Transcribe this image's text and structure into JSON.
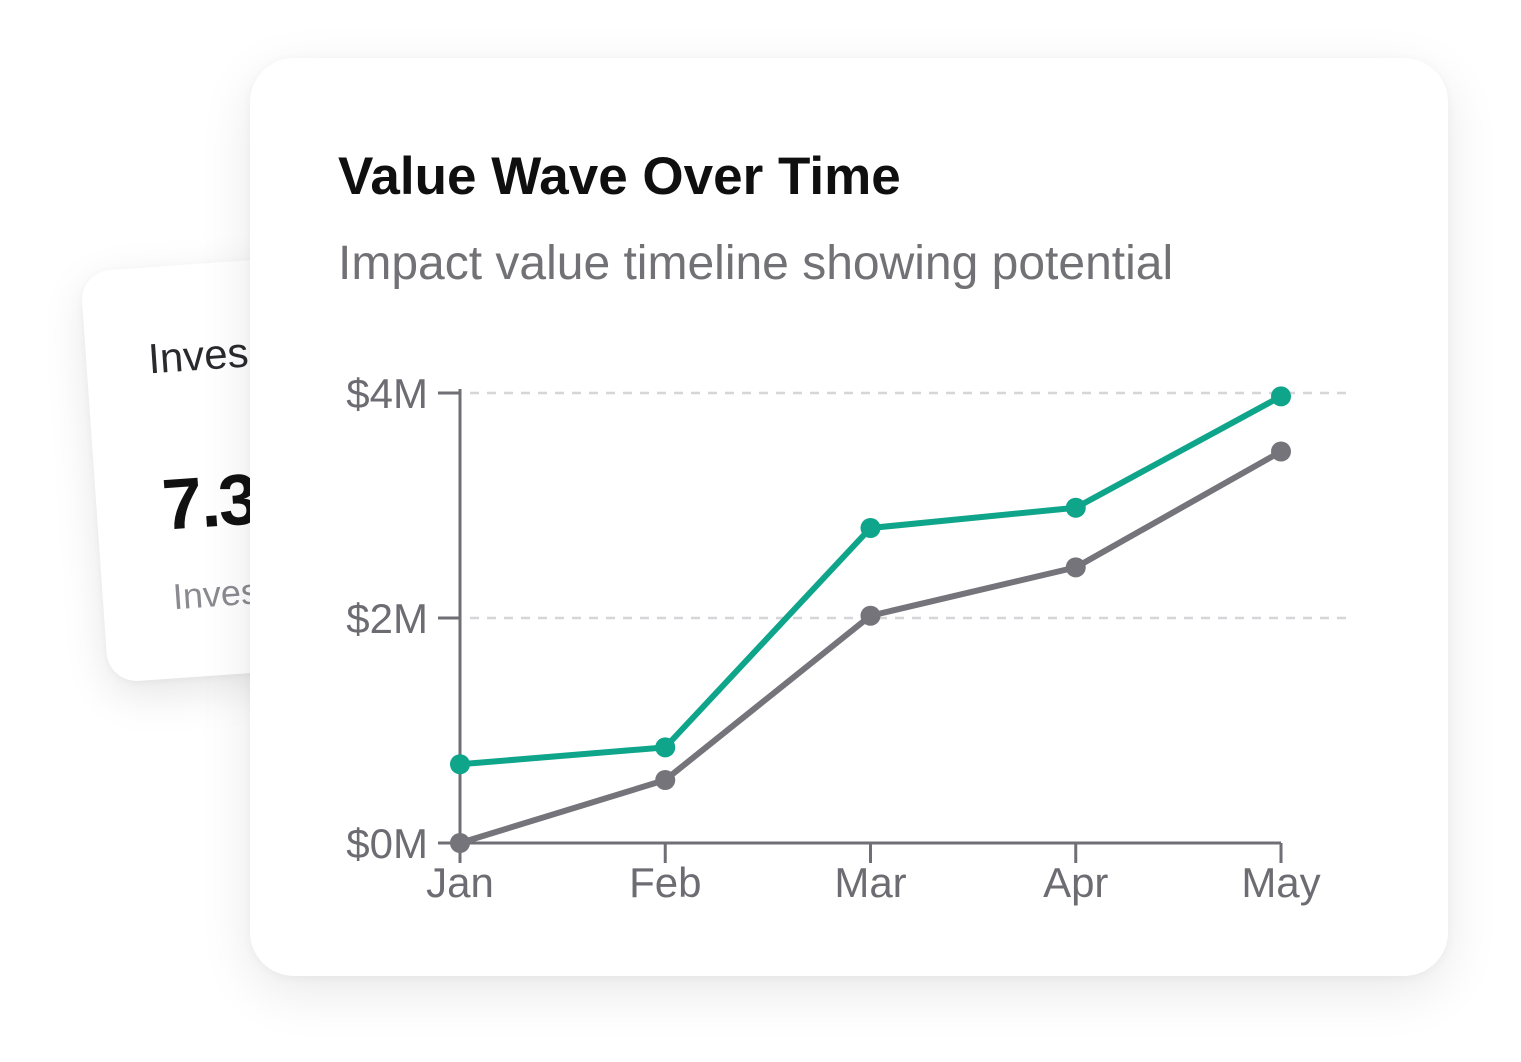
{
  "back_card": {
    "title": "Inves",
    "value": "7.3",
    "subtitle": "Inves"
  },
  "card": {
    "title": "Value Wave Over Time",
    "subtitle": "Impact value timeline showing potential"
  },
  "colors": {
    "series_teal": "#0ea58b",
    "series_gray": "#75747b",
    "axis": "#6f6f75",
    "grid": "#d6d6d9"
  },
  "chart_data": {
    "type": "line",
    "title": "Value Wave Over Time",
    "subtitle": "Impact value timeline showing potential",
    "categories": [
      "Jan",
      "Feb",
      "Mar",
      "Apr",
      "May"
    ],
    "y_ticks": [
      {
        "value": 0,
        "label": "$0M"
      },
      {
        "value": 2,
        "label": "$2M"
      },
      {
        "value": 4,
        "label": "$4M"
      }
    ],
    "ylim": [
      0,
      4
    ],
    "grid": "dashed horizontal",
    "legend": "none",
    "series": [
      {
        "color": "#0ea58b",
        "values": [
          0.7,
          0.85,
          2.8,
          2.98,
          3.97
        ]
      },
      {
        "color": "#75747b",
        "values": [
          0.0,
          0.56,
          2.02,
          2.45,
          3.48
        ]
      }
    ]
  }
}
